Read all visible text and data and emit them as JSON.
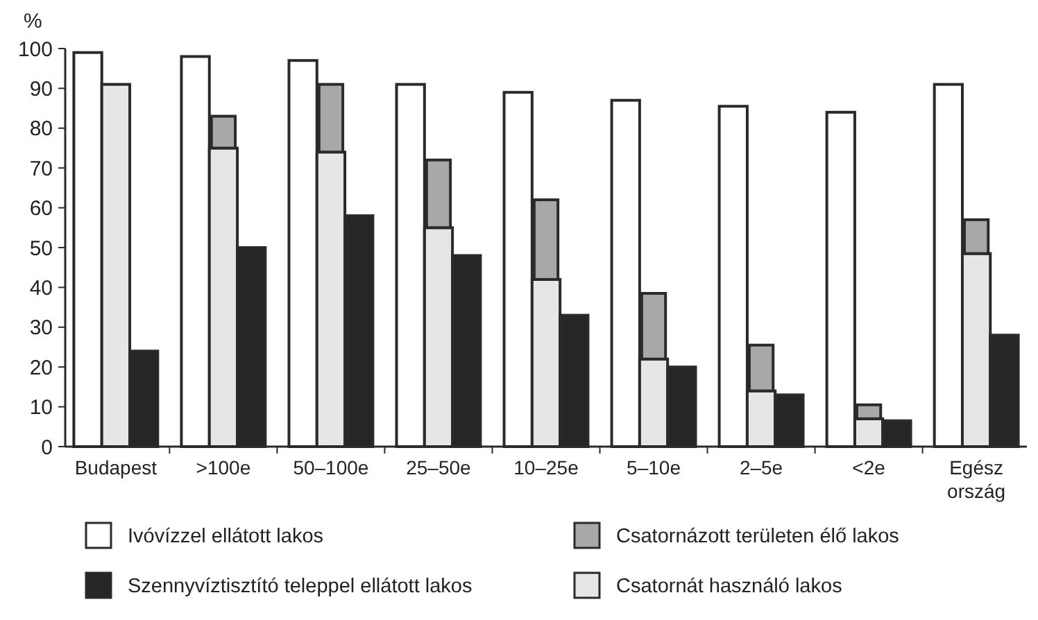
{
  "chart_data": {
    "type": "bar",
    "ylabel": "%",
    "categories": [
      "Budapest",
      ">100e",
      "50–100e",
      "25–50e",
      "10–25e",
      "5–10e",
      "2–5e",
      "<2e",
      "Egész ország"
    ],
    "ylim": [
      0,
      100
    ],
    "yticks": [
      0,
      10,
      20,
      30,
      40,
      50,
      60,
      70,
      80,
      90,
      100
    ],
    "grid": false,
    "legend": "bottom",
    "series": [
      {
        "name": "Ivóvízzel ellátott lakos",
        "color": "#ffffff",
        "values": [
          99,
          98,
          97,
          91,
          89,
          87,
          85.5,
          84,
          91
        ]
      },
      {
        "name": "Csatornát használó lakos",
        "color": "#e6e6e6",
        "values": [
          91,
          75,
          74,
          55,
          42,
          22,
          14,
          7,
          48.5
        ]
      },
      {
        "name": "Csatornázott területen élő lakos",
        "color": "#a8a8a8",
        "base": [
          null,
          75,
          74,
          55,
          42,
          22,
          14,
          7,
          48.5
        ],
        "values": [
          null,
          8,
          17,
          17,
          20,
          16.5,
          11.5,
          3.5,
          8.5
        ]
      },
      {
        "name": "Szennyvíztisztító teleppel ellátott lakos",
        "color": "#262626",
        "values": [
          24,
          50,
          58,
          48,
          33,
          20,
          13,
          6.5,
          28
        ]
      }
    ]
  }
}
